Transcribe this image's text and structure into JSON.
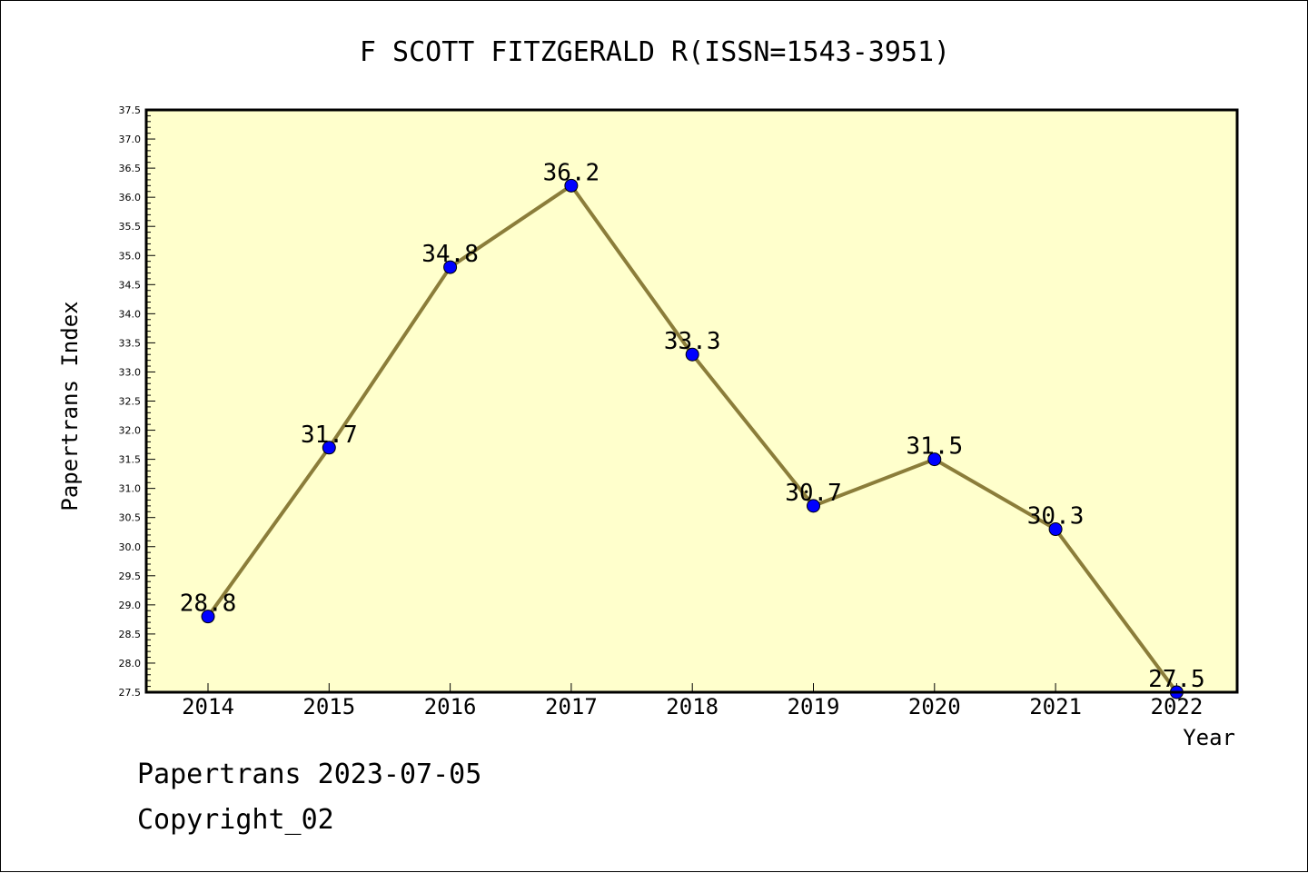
{
  "chart_data": {
    "type": "line",
    "title": "F SCOTT FITZGERALD R(ISSN=1543-3951)",
    "xlabel": "Year",
    "ylabel": "Papertrans Index",
    "categories": [
      "2014",
      "2015",
      "2016",
      "2017",
      "2018",
      "2019",
      "2020",
      "2021",
      "2022"
    ],
    "series": [
      {
        "values": [
          28.8,
          31.7,
          34.8,
          36.2,
          33.3,
          30.7,
          31.5,
          30.3,
          27.5
        ],
        "data_labels": [
          "28.8",
          "31.7",
          "34.8",
          "36.2",
          "33.3",
          "30.7",
          "31.5",
          "30.3",
          "27.5"
        ],
        "line_color": "#8b7d3a",
        "marker_color": "#0000ff"
      }
    ],
    "ylim": [
      27.5,
      37.5
    ],
    "yticks": [
      "27.5",
      "28.0",
      "28.5",
      "29.0",
      "29.5",
      "30.0",
      "30.5",
      "31.0",
      "31.5",
      "32.0",
      "32.5",
      "33.0",
      "33.5",
      "34.0",
      "34.5",
      "35.0",
      "35.5",
      "36.0",
      "36.5",
      "37.0",
      "37.5"
    ],
    "plot_background": "#ffffcc",
    "grid": false,
    "legend": "none"
  },
  "footer": {
    "line1": "Papertrans 2023-07-05",
    "line2": "Copyright_02"
  }
}
